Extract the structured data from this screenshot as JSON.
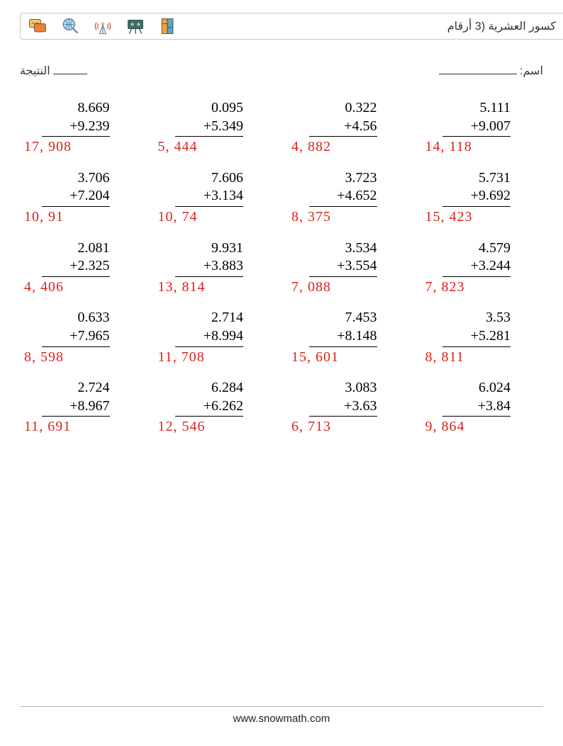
{
  "header": {
    "title": "كسور العشرية (3 أرقام",
    "icons": [
      "chat-icon",
      "globe-icon",
      "antenna-icon",
      "board-icon",
      "books-icon"
    ]
  },
  "meta": {
    "name_suffix": ":",
    "name_label": "اسم",
    "name_blank_width": 110,
    "score_label": "النتيجة",
    "score_blank_width": 48
  },
  "answer_color": "#d8231c",
  "problems": [
    [
      {
        "a": "8.669",
        "b": "+9.239",
        "ans": "17, 908"
      },
      {
        "a": "0.095",
        "b": "+5.349",
        "ans": "5, 444"
      },
      {
        "a": "0.322",
        "b": "+4.56",
        "ans": "4, 882"
      },
      {
        "a": "5.111",
        "b": "+9.007",
        "ans": "14, 118"
      }
    ],
    [
      {
        "a": "3.706",
        "b": "+7.204",
        "ans": "10, 91"
      },
      {
        "a": "7.606",
        "b": "+3.134",
        "ans": "10, 74"
      },
      {
        "a": "3.723",
        "b": "+4.652",
        "ans": "8, 375"
      },
      {
        "a": "5.731",
        "b": "+9.692",
        "ans": "15, 423"
      }
    ],
    [
      {
        "a": "2.081",
        "b": "+2.325",
        "ans": "4, 406"
      },
      {
        "a": "9.931",
        "b": "+3.883",
        "ans": "13, 814"
      },
      {
        "a": "3.534",
        "b": "+3.554",
        "ans": "7, 088"
      },
      {
        "a": "4.579",
        "b": "+3.244",
        "ans": "7, 823"
      }
    ],
    [
      {
        "a": "0.633",
        "b": "+7.965",
        "ans": "8, 598"
      },
      {
        "a": "2.714",
        "b": "+8.994",
        "ans": "11, 708"
      },
      {
        "a": "7.453",
        "b": "+8.148",
        "ans": "15, 601"
      },
      {
        "a": "3.53",
        "b": "+5.281",
        "ans": "8, 811"
      }
    ],
    [
      {
        "a": "2.724",
        "b": "+8.967",
        "ans": "11, 691"
      },
      {
        "a": "6.284",
        "b": "+6.262",
        "ans": "12, 546"
      },
      {
        "a": "3.083",
        "b": "+3.63",
        "ans": "6, 713"
      },
      {
        "a": "6.024",
        "b": "+3.84",
        "ans": "9, 864"
      }
    ]
  ],
  "footer": {
    "text": "www.snowmath.com"
  }
}
